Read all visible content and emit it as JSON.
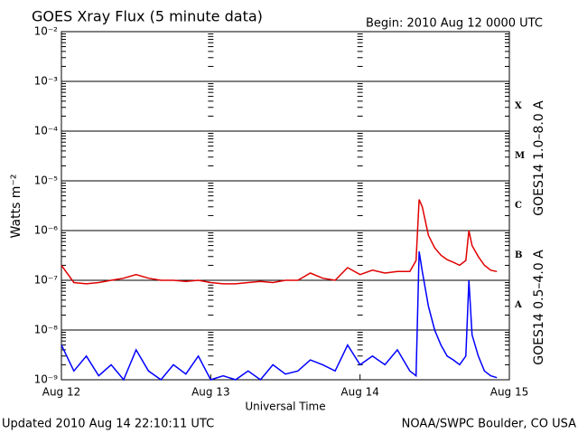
{
  "chart_data": {
    "type": "line",
    "title": "GOES Xray Flux (5 minute data)",
    "subtitle": "Begin:  2010 Aug 12 0000 UTC",
    "ylabel": "Watts m⁻²",
    "xlabel": "Universal Time",
    "footer_left": "Updated 2010 Aug 14 22:10:11 UTC",
    "footer_right": "NOAA/SWPC Boulder, CO USA",
    "log_y": true,
    "grid": true,
    "minor_ticks": true,
    "ylim": [
      1e-09,
      0.01
    ],
    "yticks": [
      {
        "value": 1e-09,
        "label": "10⁻⁹"
      },
      {
        "value": 1e-08,
        "label": "10⁻⁸"
      },
      {
        "value": 1e-07,
        "label": "10⁻⁷"
      },
      {
        "value": 1e-06,
        "label": "10⁻⁶"
      },
      {
        "value": 1e-05,
        "label": "10⁻⁵"
      },
      {
        "value": 0.0001,
        "label": "10⁻⁴"
      },
      {
        "value": 0.001,
        "label": "10⁻³"
      },
      {
        "value": 0.01,
        "label": "10⁻²"
      }
    ],
    "xlim": [
      "2010-08-12T00:00",
      "2010-08-15T00:00"
    ],
    "xticks": [
      {
        "value": "2010-08-12T00:00",
        "label": "Aug 12"
      },
      {
        "value": "2010-08-13T00:00",
        "label": "Aug 13"
      },
      {
        "value": "2010-08-14T00:00",
        "label": "Aug 14"
      },
      {
        "value": "2010-08-15T00:00",
        "label": "Aug 15"
      }
    ],
    "flare_classes": [
      {
        "label": "A",
        "value": 1e-08
      },
      {
        "label": "B",
        "value": 1e-07
      },
      {
        "label": "C",
        "value": 1e-06
      },
      {
        "label": "M",
        "value": 1e-05
      },
      {
        "label": "X",
        "value": 0.0001
      }
    ],
    "x": [
      "2010-08-12T00:00",
      "2010-08-12T02:00",
      "2010-08-12T04:00",
      "2010-08-12T06:00",
      "2010-08-12T08:00",
      "2010-08-12T10:00",
      "2010-08-12T12:00",
      "2010-08-12T14:00",
      "2010-08-12T16:00",
      "2010-08-12T18:00",
      "2010-08-12T20:00",
      "2010-08-12T22:00",
      "2010-08-13T00:00",
      "2010-08-13T02:00",
      "2010-08-13T04:00",
      "2010-08-13T06:00",
      "2010-08-13T08:00",
      "2010-08-13T10:00",
      "2010-08-13T12:00",
      "2010-08-13T14:00",
      "2010-08-13T16:00",
      "2010-08-13T18:00",
      "2010-08-13T20:00",
      "2010-08-13T22:00",
      "2010-08-14T00:00",
      "2010-08-14T02:00",
      "2010-08-14T04:00",
      "2010-08-14T06:00",
      "2010-08-14T08:00",
      "2010-08-14T09:00",
      "2010-08-14T09:30",
      "2010-08-14T10:00",
      "2010-08-14T11:00",
      "2010-08-14T12:00",
      "2010-08-14T13:00",
      "2010-08-14T14:00",
      "2010-08-14T15:00",
      "2010-08-14T16:00",
      "2010-08-14T17:00",
      "2010-08-14T17:30",
      "2010-08-14T18:00",
      "2010-08-14T19:00",
      "2010-08-14T20:00",
      "2010-08-14T21:00",
      "2010-08-14T22:00"
    ],
    "series": [
      {
        "name": "GOES14 1.0–8.0 A",
        "color": "#e00000",
        "values": [
          2e-07,
          9e-08,
          8.5e-08,
          9e-08,
          1e-07,
          1.1e-07,
          1.3e-07,
          1.1e-07,
          1e-07,
          1e-07,
          9.5e-08,
          1e-07,
          9e-08,
          8.5e-08,
          8.5e-08,
          9e-08,
          9.5e-08,
          9e-08,
          1e-07,
          1e-07,
          1.4e-07,
          1.1e-07,
          1e-07,
          1.8e-07,
          1.3e-07,
          1.6e-07,
          1.4e-07,
          1.5e-07,
          1.5e-07,
          2.5e-07,
          4.2e-06,
          3e-06,
          8e-07,
          4.5e-07,
          3.2e-07,
          2.6e-07,
          2.3e-07,
          2e-07,
          2.5e-07,
          1e-06,
          5e-07,
          3e-07,
          2e-07,
          1.6e-07,
          1.5e-07
        ]
      },
      {
        "name": "GOES14 0.5–4.0 A",
        "color": "#0000ff",
        "values": [
          5e-09,
          1.5e-09,
          3e-09,
          1.2e-09,
          2e-09,
          1e-09,
          4e-09,
          1.5e-09,
          1e-09,
          2e-09,
          1.3e-09,
          3e-09,
          1e-09,
          1.2e-09,
          1e-09,
          1.5e-09,
          1e-09,
          2e-09,
          1.3e-09,
          1.5e-09,
          2.5e-09,
          2e-09,
          1.5e-09,
          5e-09,
          2e-09,
          3e-09,
          2e-09,
          4e-09,
          1.5e-09,
          1.2e-09,
          3.8e-07,
          1.5e-07,
          3e-08,
          1e-08,
          5e-09,
          3e-09,
          2.5e-09,
          2e-09,
          3e-09,
          1e-07,
          8e-09,
          3e-09,
          1.5e-09,
          1.2e-09,
          1.1e-09
        ]
      }
    ]
  }
}
